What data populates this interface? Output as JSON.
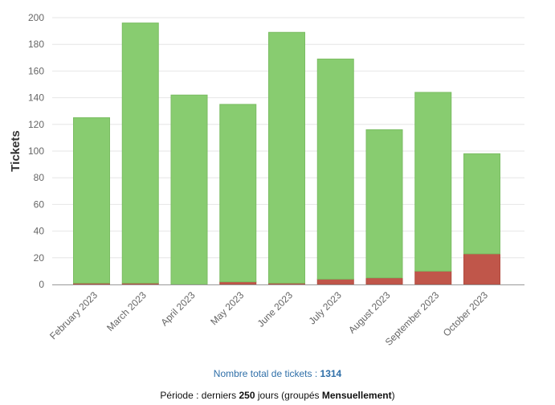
{
  "chart_data": {
    "type": "bar",
    "stacked": true,
    "ylabel": "Tickets",
    "xlabel": "",
    "ylim": [
      0,
      200
    ],
    "yticks": [
      0,
      20,
      40,
      60,
      80,
      100,
      120,
      140,
      160,
      180,
      200
    ],
    "grid": true,
    "categories": [
      "February 2023",
      "March 2023",
      "April 2023",
      "May 2023",
      "June 2023",
      "July 2023",
      "August 2023",
      "September 2023",
      "October 2023"
    ],
    "series": [
      {
        "color": "#c0564a",
        "values": [
          1,
          1,
          0,
          2,
          1,
          4,
          5,
          10,
          23
        ]
      },
      {
        "color": "#88cc70",
        "values": [
          124,
          195,
          142,
          133,
          188,
          165,
          111,
          134,
          75
        ]
      }
    ]
  },
  "footer": {
    "total_label": "Nombre total de tickets : ",
    "total_value": "1314",
    "period_prefix": "Période : derniers ",
    "period_days": "250",
    "period_mid": " jours (groupés ",
    "period_group": "Mensuellement",
    "period_suffix": ")"
  }
}
